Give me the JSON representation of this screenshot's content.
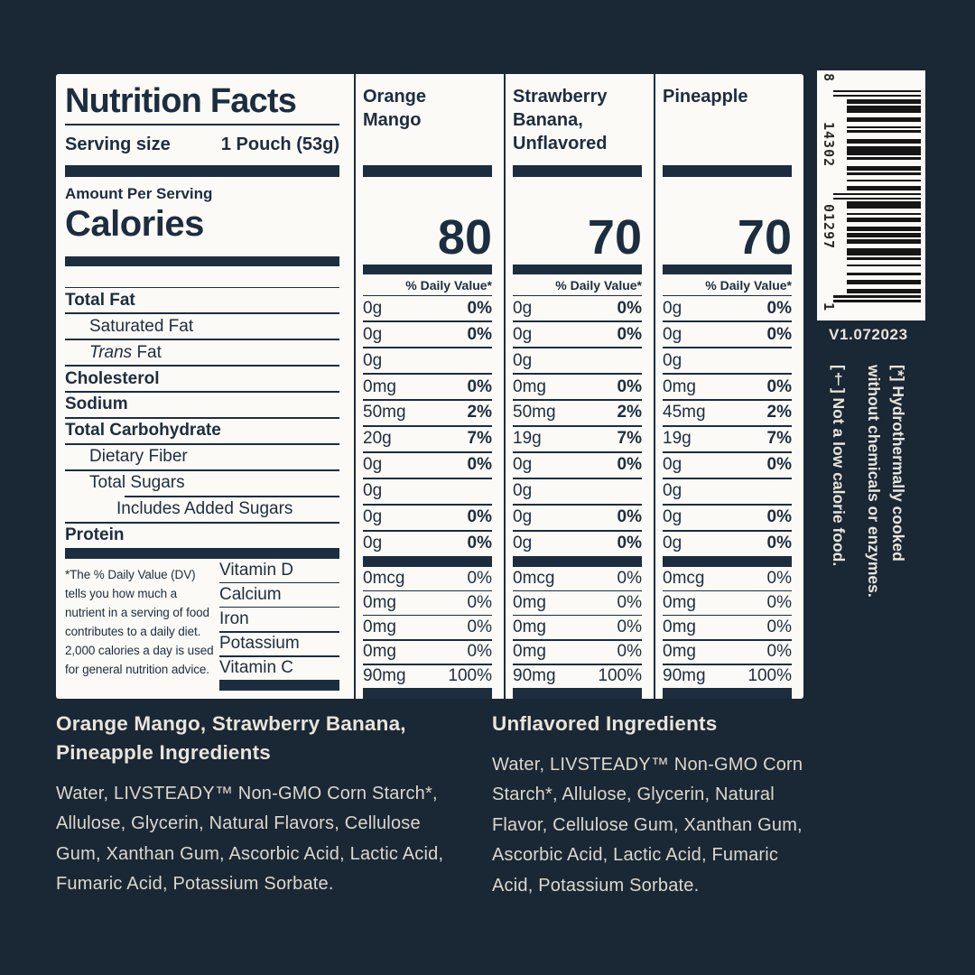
{
  "colors": {
    "background": "#1a2735",
    "panel": "#fbfaf6",
    "ink": "#1d2d40",
    "cream": "#e9e5da"
  },
  "label": {
    "title": "Nutrition Facts",
    "serving_size_label": "Serving size",
    "serving_size_value": "1 Pouch (53g)",
    "amount_per_serving": "Amount Per Serving",
    "calories_label": "Calories",
    "daily_value_header": "% Daily Value*",
    "nutrient_rows": [
      {
        "label": "Total Fat",
        "bold": true,
        "indent": 0
      },
      {
        "label": "Saturated Fat",
        "bold": false,
        "indent": 1
      },
      {
        "label": "Fat",
        "italic_prefix": "Trans",
        "bold": false,
        "indent": 1
      },
      {
        "label": "Cholesterol",
        "bold": true,
        "indent": 0
      },
      {
        "label": "Sodium",
        "bold": true,
        "indent": 0
      },
      {
        "label": "Total Carbohydrate",
        "bold": true,
        "indent": 0
      },
      {
        "label": "Dietary Fiber",
        "bold": false,
        "indent": 1
      },
      {
        "label": "Total Sugars",
        "bold": false,
        "indent": 1,
        "rule_indent": true
      },
      {
        "label": "Includes Added Sugars",
        "bold": false,
        "indent": 2
      },
      {
        "label": "Protein",
        "bold": true,
        "indent": 0
      }
    ],
    "vitamin_rows": [
      "Vitamin D",
      "Calcium",
      "Iron",
      "Potassium",
      "Vitamin C"
    ],
    "columns": [
      {
        "name": "Orange Mango",
        "calories": "80",
        "amounts": [
          "0g",
          "0g",
          "0g",
          "0mg",
          "50mg",
          "20g",
          "0g",
          "0g",
          "0g",
          "0g"
        ],
        "daily_values": [
          "0%",
          "0%",
          "",
          "0%",
          "2%",
          "7%",
          "0%",
          "",
          "0%",
          "0%"
        ],
        "vitamin_amounts": [
          "0mcg",
          "0mg",
          "0mg",
          "0mg",
          "90mg"
        ],
        "vitamin_daily_values": [
          "0%",
          "0%",
          "0%",
          "0%",
          "100%"
        ]
      },
      {
        "name": "Strawberry Banana, Unflavored",
        "calories": "70",
        "amounts": [
          "0g",
          "0g",
          "0g",
          "0mg",
          "50mg",
          "19g",
          "0g",
          "0g",
          "0g",
          "0g"
        ],
        "daily_values": [
          "0%",
          "0%",
          "",
          "0%",
          "2%",
          "7%",
          "0%",
          "",
          "0%",
          "0%"
        ],
        "vitamin_amounts": [
          "0mcg",
          "0mg",
          "0mg",
          "0mg",
          "90mg"
        ],
        "vitamin_daily_values": [
          "0%",
          "0%",
          "0%",
          "0%",
          "100%"
        ]
      },
      {
        "name": "Pineapple",
        "calories": "70",
        "amounts": [
          "0g",
          "0g",
          "0g",
          "0mg",
          "45mg",
          "19g",
          "0g",
          "0g",
          "0g",
          "0g"
        ],
        "daily_values": [
          "0%",
          "0%",
          "",
          "0%",
          "2%",
          "7%",
          "0%",
          "",
          "0%",
          "0%"
        ],
        "vitamin_amounts": [
          "0mcg",
          "0mg",
          "0mg",
          "0mg",
          "90mg"
        ],
        "vitamin_daily_values": [
          "0%",
          "0%",
          "0%",
          "0%",
          "100%"
        ]
      }
    ],
    "footnote": "*The % Daily Value (DV) tells you how much a nutrient in a serving of food contributes to a daily diet. 2,000 calories a day is used for general nutrition advice."
  },
  "barcode": {
    "digit_groups": [
      "8",
      "14302",
      "01297",
      "1"
    ],
    "digits": "814302012971",
    "version": "V1.072023"
  },
  "side_notes": [
    {
      "lines": [
        "[*] Hydrothermally cooked",
        "without chemicals or enzymes."
      ]
    },
    {
      "lines": [
        "[†] Not a low calorie food."
      ]
    }
  ],
  "ingredients": [
    {
      "heading": "Orange Mango, Strawberry Banana, Pineapple Ingredients",
      "body": "Water, LIVSTEADY™ Non-GMO Corn Starch*, Allulose, Glycerin, Natural Flavors, Cellulose Gum, Xanthan Gum, Ascorbic Acid, Lactic Acid, Fumaric Acid, Potassium Sorbate."
    },
    {
      "heading": "Unflavored Ingredients",
      "body": "Water, LIVSTEADY™ Non-GMO Corn Starch*, Allulose, Glycerin, Natural Flavor, Cellulose Gum, Xanthan Gum, Ascorbic Acid, Lactic Acid, Fumaric Acid, Potassium Sorbate."
    }
  ]
}
